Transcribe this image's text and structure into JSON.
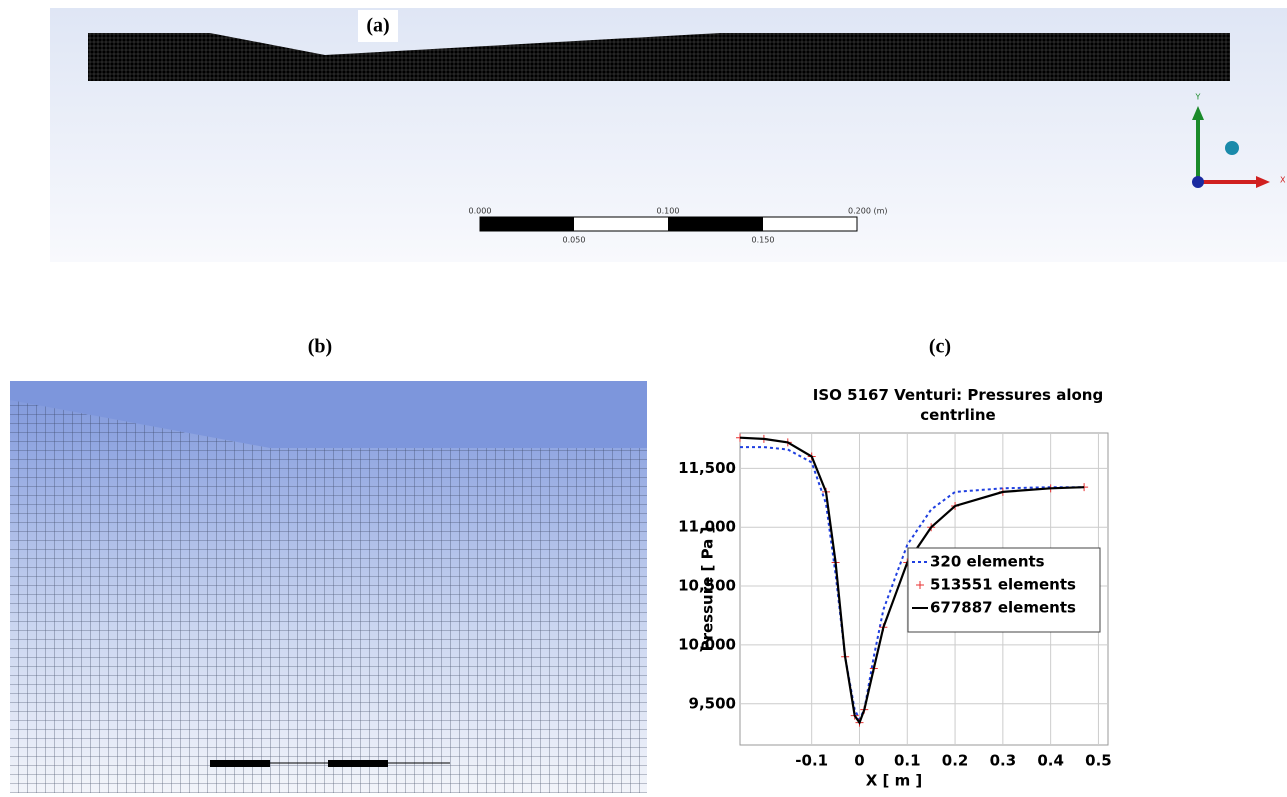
{
  "panels": {
    "a": {
      "label": "(a)",
      "scale_labels": [
        "0.000",
        "0.100",
        "0.200 (m)",
        "0.050",
        "0.150"
      ],
      "axis_y": "Y",
      "axis_x": "X"
    },
    "b": {
      "label": "(b)"
    },
    "c": {
      "label": "(c)"
    }
  },
  "chart_data": {
    "type": "line",
    "title": "ISO 5167 Venturi: Pressures along centrline",
    "x_label": "X [ m ]",
    "y_label": "Pressure [ Pa ]",
    "x": [
      -0.25,
      -0.2,
      -0.15,
      -0.1,
      -0.07,
      -0.05,
      -0.03,
      -0.01,
      0,
      0.01,
      0.03,
      0.05,
      0.1,
      0.15,
      0.2,
      0.3,
      0.4,
      0.47
    ],
    "series": [
      {
        "name": "320 elements",
        "color": "#1f3fe0",
        "style": "dotted",
        "values": [
          11680,
          11680,
          11660,
          11550,
          11200,
          10600,
          9900,
          9450,
          9370,
          9450,
          9900,
          10300,
          10850,
          11150,
          11300,
          11330,
          11340,
          11340
        ]
      },
      {
        "name": "513551 elements",
        "color": "#e83030",
        "style": "markers",
        "values": [
          11760,
          11750,
          11720,
          11600,
          11300,
          10700,
          9900,
          9400,
          9340,
          9450,
          9800,
          10150,
          10700,
          11000,
          11180,
          11300,
          11330,
          11340
        ]
      },
      {
        "name": "677887 elements",
        "color": "#000000",
        "style": "solid",
        "values": [
          11760,
          11750,
          11720,
          11600,
          11300,
          10700,
          9900,
          9400,
          9340,
          9450,
          9800,
          10150,
          10700,
          11000,
          11180,
          11300,
          11330,
          11340
        ]
      }
    ],
    "xlim": [
      -0.25,
      0.52
    ],
    "xticks": [
      -0.1,
      0,
      0.1,
      0.2,
      0.3,
      0.4,
      0.5
    ],
    "ylim": [
      9150,
      11800
    ],
    "yticks": [
      {
        "value": 9500,
        "label": "9,500"
      },
      {
        "value": 10000,
        "label": "10,000"
      },
      {
        "value": 10500,
        "label": "10,500"
      },
      {
        "value": 11000,
        "label": "11,000"
      },
      {
        "value": 11500,
        "label": "11,500"
      }
    ],
    "grid": true
  }
}
